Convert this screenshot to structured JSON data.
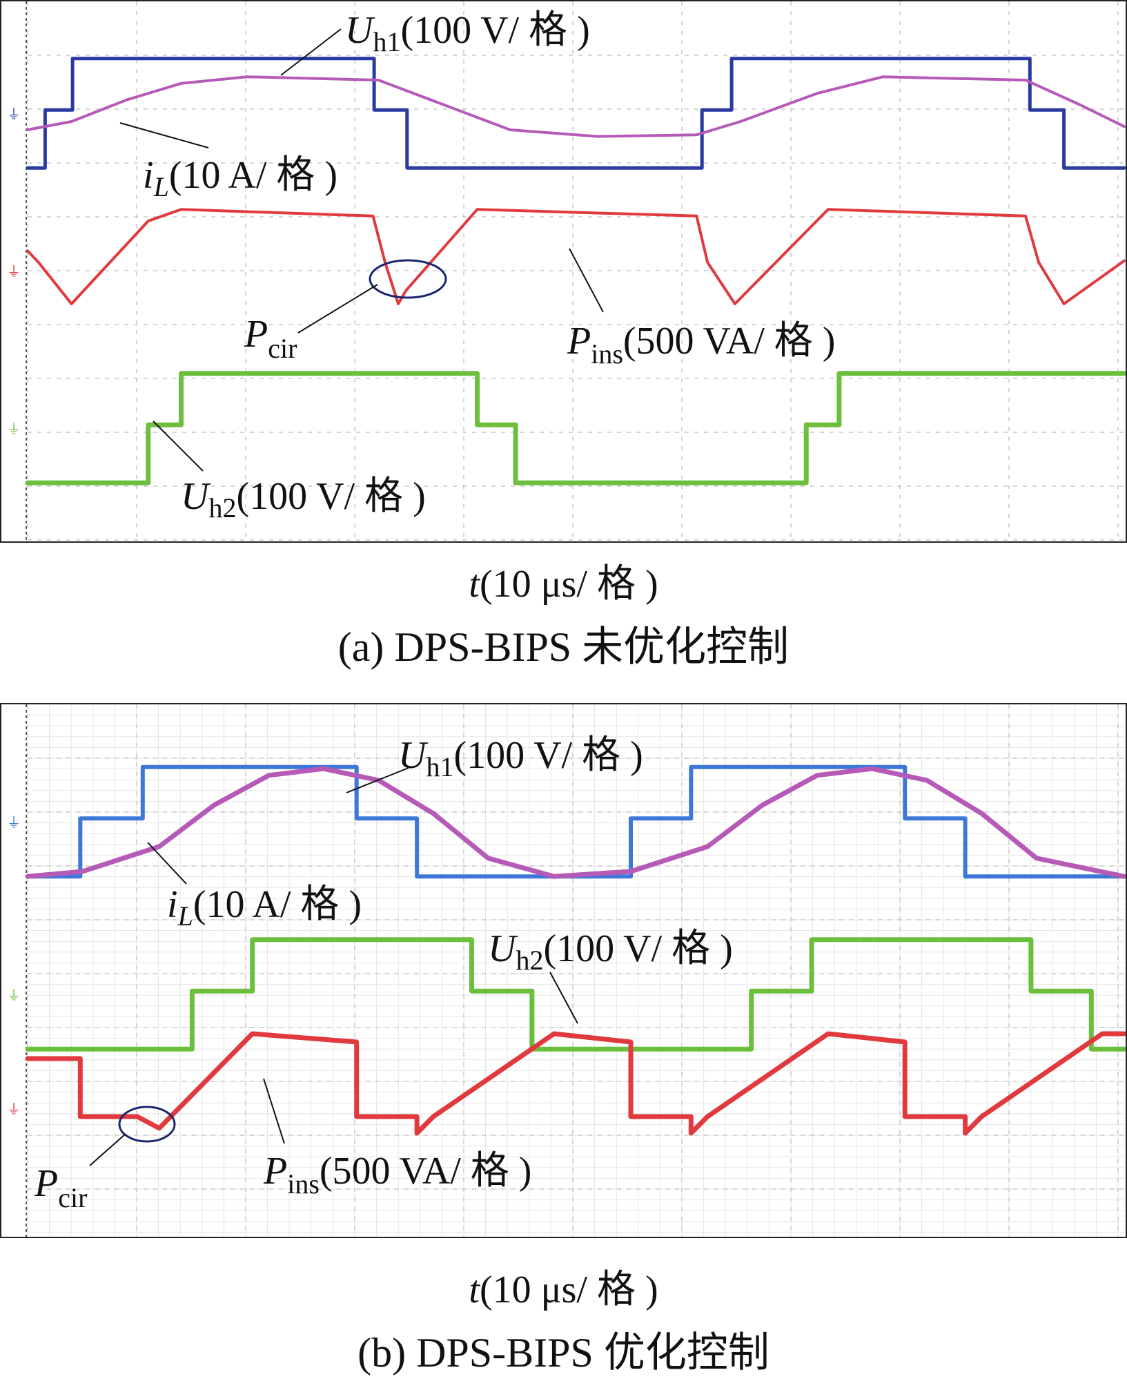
{
  "colors": {
    "uh1_a": "#2a3aa0",
    "uh1_b": "#3d78d8",
    "il": "#b65ab8",
    "pins": "#e0393e",
    "uh2": "#6cbf3c",
    "marker": "#1c2470"
  },
  "panels": [
    {
      "id": "a",
      "labels": {
        "uh1": {
          "main": "U",
          "sub": "h1",
          "rest": "(100 V/ 格 )"
        },
        "il": {
          "main": "i",
          "sub": "L",
          "rest": "(10 A/ 格 )"
        },
        "pcir": {
          "main": "P",
          "sub": "cir",
          "rest": ""
        },
        "pins": {
          "main": "P",
          "sub": "ins",
          "rest": "(500 VA/ 格 )"
        },
        "uh2": {
          "main": "U",
          "sub": "h2",
          "rest": "(100 V/ 格 )"
        }
      },
      "axis_caption": {
        "main": "t",
        "rest": "(10 μs/ 格 )"
      },
      "caption": "(a) DPS-BIPS 未优化控制"
    },
    {
      "id": "b",
      "labels": {
        "uh1": {
          "main": "U",
          "sub": "h1",
          "rest": "(100 V/ 格 )"
        },
        "il": {
          "main": "i",
          "sub": "L",
          "rest": "(10 A/ 格 )"
        },
        "uh2": {
          "main": "U",
          "sub": "h2",
          "rest": "(100 V/ 格 )"
        },
        "pcir": {
          "main": "P",
          "sub": "cir",
          "rest": ""
        },
        "pins": {
          "main": "P",
          "sub": "ins",
          "rest": "(500 VA/ 格 )"
        }
      },
      "axis_caption": {
        "main": "t",
        "rest": "(10 μs/ 格 )"
      },
      "caption": "(b) DPS-BIPS 优化控制"
    }
  ],
  "chart_data": [
    {
      "type": "line",
      "title": "(a) DPS-BIPS 未优化控制",
      "xlabel": "t(10 μs/ 格 )",
      "x_unit": "μs",
      "series": [
        {
          "name": "Uh1(100 V/ 格 )",
          "x": [
            0,
            1.6,
            1.6,
            4.1,
            4.1,
            31.6,
            31.6,
            34.6,
            34.6,
            61.5,
            61.5,
            64.2,
            64.2,
            91.4,
            91.4,
            94.5,
            94.5,
            100
          ],
          "y": [
            -0.33,
            -0.33,
            0.02,
            0.02,
            0.33,
            0.33,
            0.02,
            0.02,
            -0.33,
            -0.33,
            0.02,
            0.02,
            0.33,
            0.33,
            0.02,
            0.02,
            -0.33,
            -0.33
          ]
        },
        {
          "name": "iL(10 A/ 格 )",
          "x": [
            0,
            4,
            9,
            14,
            20,
            32,
            38,
            44,
            52,
            61,
            65,
            72,
            78,
            91,
            96,
            100
          ],
          "y": [
            -0.1,
            -0.05,
            0.08,
            0.18,
            0.22,
            0.2,
            0.05,
            -0.1,
            -0.14,
            -0.13,
            -0.05,
            0.12,
            0.22,
            0.2,
            0.05,
            -0.08
          ]
        },
        {
          "name": "Pins(500 VA/ 格 )",
          "x": [
            0,
            1,
            4,
            11,
            14,
            31.5,
            32.6,
            33.8,
            34.5,
            41,
            61,
            62,
            64.5,
            73,
            91,
            92.2,
            94.5,
            100
          ],
          "y": [
            0.12,
            0.05,
            -0.2,
            0.3,
            0.37,
            0.33,
            0.05,
            -0.2,
            -0.12,
            0.37,
            0.33,
            0.05,
            -0.2,
            0.37,
            0.33,
            0.05,
            -0.2,
            0.06
          ]
        },
        {
          "name": "Uh2(100 V/ 格 )",
          "x": [
            0,
            11,
            11,
            14,
            14,
            41,
            41,
            44.5,
            44.5,
            71,
            71,
            74,
            74,
            100
          ],
          "y": [
            -0.33,
            -0.33,
            0.02,
            0.02,
            0.33,
            0.33,
            0.02,
            0.02,
            -0.33,
            -0.33,
            0.02,
            0.02,
            0.33,
            0.33
          ]
        }
      ]
    },
    {
      "type": "line",
      "title": "(b) DPS-BIPS 优化控制",
      "xlabel": "t(10 μs/ 格 )",
      "x_unit": "μs",
      "series": [
        {
          "name": "Uh1(100 V/ 格 )",
          "x": [
            0,
            4.8,
            4.8,
            10.5,
            10.5,
            30,
            30,
            35.5,
            35.5,
            55,
            55,
            60.5,
            60.5,
            80,
            80,
            85.5,
            85.5,
            100
          ],
          "y": [
            -0.33,
            -0.33,
            0.02,
            0.02,
            0.33,
            0.33,
            0.02,
            0.02,
            -0.33,
            -0.33,
            0.02,
            0.02,
            0.33,
            0.33,
            0.02,
            0.02,
            -0.33,
            -0.33
          ]
        },
        {
          "name": "iL(10 A/ 格 )",
          "x": [
            0,
            5,
            12,
            17,
            22,
            27,
            32,
            37,
            42,
            48,
            55,
            62,
            67,
            72,
            77,
            82,
            87,
            92,
            100
          ],
          "y": [
            -0.33,
            -0.3,
            -0.15,
            0.1,
            0.28,
            0.32,
            0.25,
            0.05,
            -0.22,
            -0.33,
            -0.3,
            -0.15,
            0.1,
            0.28,
            0.32,
            0.25,
            0.05,
            -0.22,
            -0.33
          ]
        },
        {
          "name": "Uh2(100 V/ 格 )",
          "x": [
            0,
            15,
            15,
            20.5,
            20.5,
            40.5,
            40.5,
            46,
            46,
            66,
            66,
            71.5,
            71.5,
            91.5,
            91.5,
            97,
            97,
            100
          ],
          "y": [
            -0.33,
            -0.33,
            0.02,
            0.02,
            0.33,
            0.33,
            0.02,
            0.02,
            -0.33,
            -0.33,
            0.02,
            0.02,
            0.33,
            0.33,
            0.02,
            0.02,
            -0.33,
            -0.33
          ]
        },
        {
          "name": "Pins(500 VA/ 格 )",
          "x": [
            0,
            4.8,
            4.8,
            10,
            12,
            20.5,
            30,
            30,
            35.5,
            35.5,
            37,
            48,
            55,
            55,
            60.5,
            60.5,
            62,
            73,
            80,
            80,
            85.5,
            85.5,
            87,
            98,
            100
          ],
          "y": [
            0.3,
            0.3,
            -0.05,
            -0.05,
            -0.12,
            0.45,
            0.4,
            -0.05,
            -0.05,
            -0.15,
            -0.05,
            0.45,
            0.4,
            -0.05,
            -0.05,
            -0.15,
            -0.05,
            0.45,
            0.4,
            -0.05,
            -0.05,
            -0.15,
            -0.05,
            0.45,
            0.45
          ]
        }
      ]
    }
  ]
}
